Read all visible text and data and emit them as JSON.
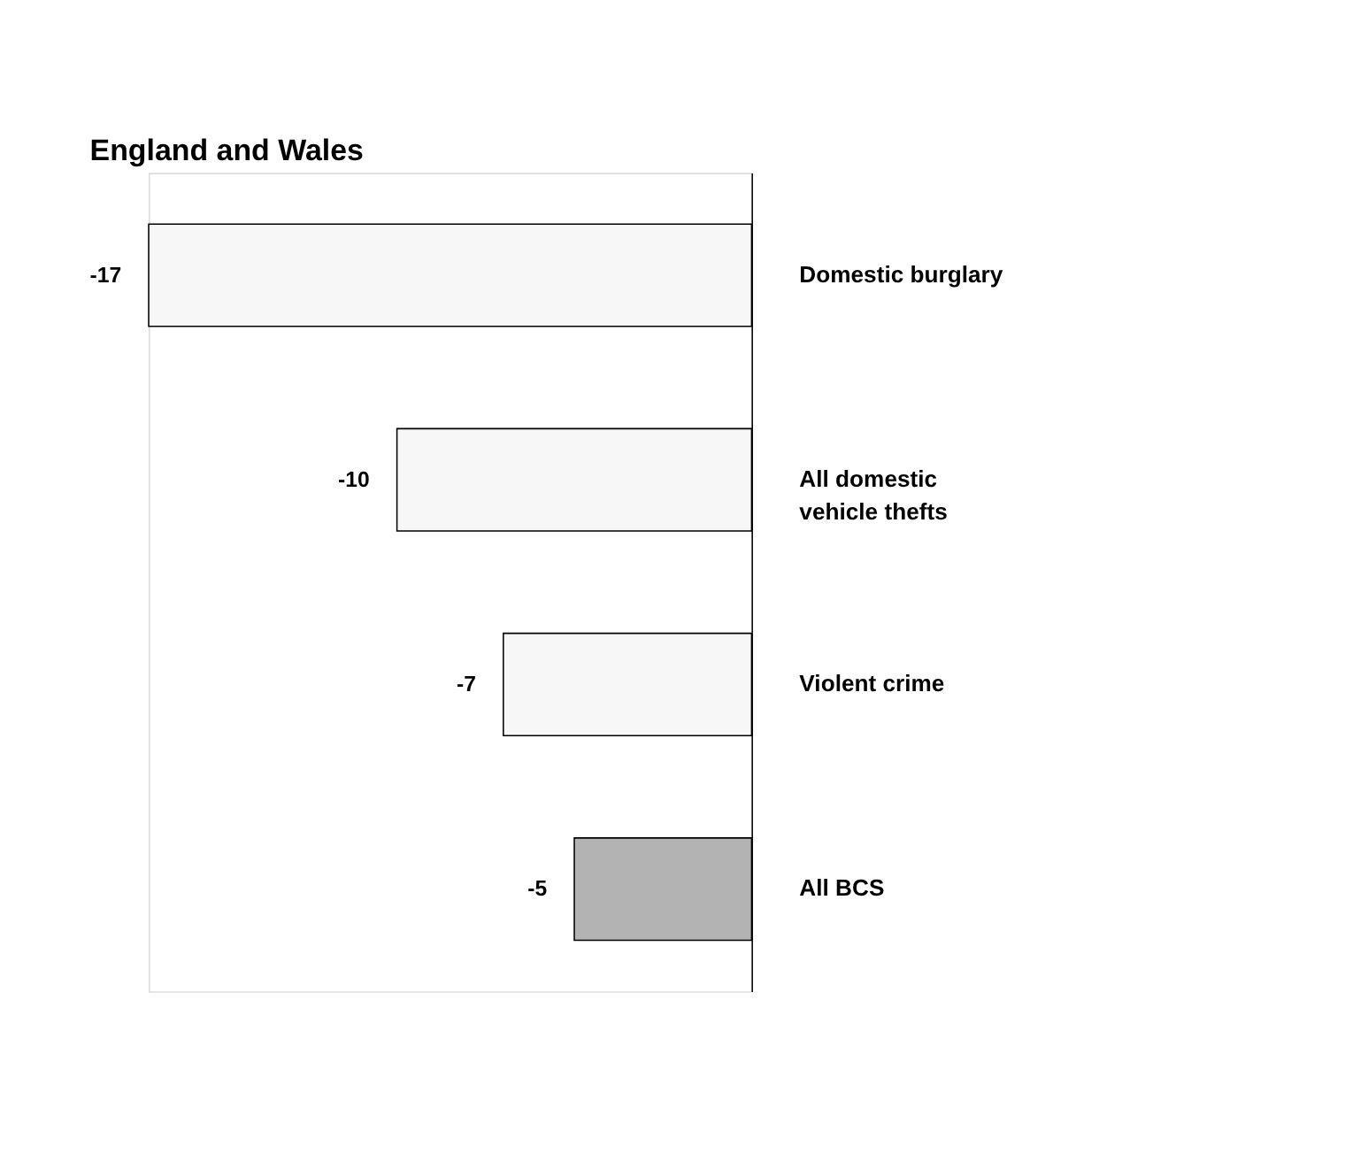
{
  "chart_data": {
    "type": "bar",
    "orientation": "horizontal",
    "title": "England and Wales",
    "categories": [
      "Domestic burglary",
      "All domestic vehicle thefts",
      "Violent crime",
      "All BCS"
    ],
    "values": [
      -17,
      -10,
      -7,
      -5
    ],
    "colors": [
      "#f7f7f7",
      "#f7f7f7",
      "#f7f7f7",
      "#b3b3b3"
    ],
    "data_labels": true
  }
}
